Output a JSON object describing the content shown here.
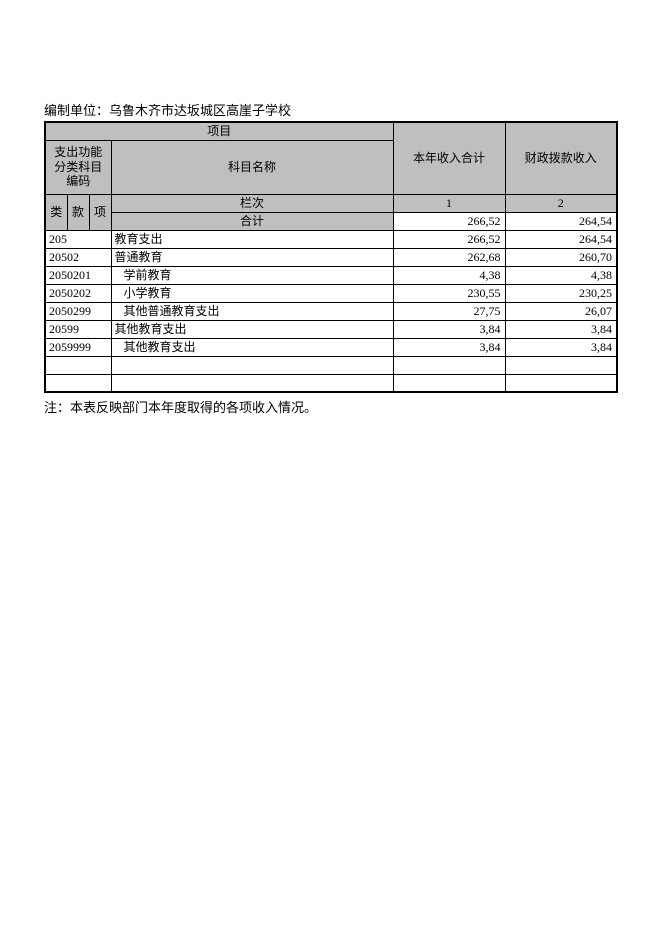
{
  "unit_label": "编制单位：乌鲁木齐市达坂城区高崖子学校",
  "header": {
    "project": "项目",
    "code_group": "支出功能分类科目编码",
    "subject_name": "科目名称",
    "total_income": "本年收入合计",
    "fiscal_income": "财政拨款收入",
    "col_lei": "类",
    "col_kuan": "款",
    "col_xiang": "项",
    "column_order": "栏次",
    "col_num_1": "1",
    "col_num_2": "2",
    "total_label": "合计"
  },
  "rows": [
    {
      "code": "",
      "name": "合计",
      "v1": "266,52",
      "v2": "264,54",
      "is_total": true,
      "indent": 0
    },
    {
      "code": "205",
      "name": "教育支出",
      "v1": "266,52",
      "v2": "264,54",
      "indent": 0
    },
    {
      "code": "20502",
      "name": "普通教育",
      "v1": "262,68",
      "v2": "260,70",
      "indent": 0
    },
    {
      "code": "2050201",
      "name": "学前教育",
      "v1": "4,38",
      "v2": "4,38",
      "indent": 1
    },
    {
      "code": "2050202",
      "name": "小学教育",
      "v1": "230,55",
      "v2": "230,25",
      "indent": 1
    },
    {
      "code": "2050299",
      "name": "其他普通教育支出",
      "v1": "27,75",
      "v2": "26,07",
      "indent": 1
    },
    {
      "code": "20599",
      "name": "其他教育支出",
      "v1": "3,84",
      "v2": "3,84",
      "indent": 0
    },
    {
      "code": "2059999",
      "name": "其他教育支出",
      "v1": "3,84",
      "v2": "3,84",
      "indent": 1
    },
    {
      "code": "",
      "name": "",
      "v1": "",
      "v2": "",
      "indent": 0
    },
    {
      "code": "",
      "name": "",
      "v1": "",
      "v2": "",
      "indent": 0
    }
  ],
  "note": "注：本表反映部门本年度取得的各项收入情况。",
  "colors": {
    "header_bg": "#bfbfbf",
    "border": "#000000",
    "bg": "#ffffff",
    "text": "#000000"
  },
  "font": {
    "family_body": "SimSun",
    "size_body": 12,
    "size_label": 13
  }
}
